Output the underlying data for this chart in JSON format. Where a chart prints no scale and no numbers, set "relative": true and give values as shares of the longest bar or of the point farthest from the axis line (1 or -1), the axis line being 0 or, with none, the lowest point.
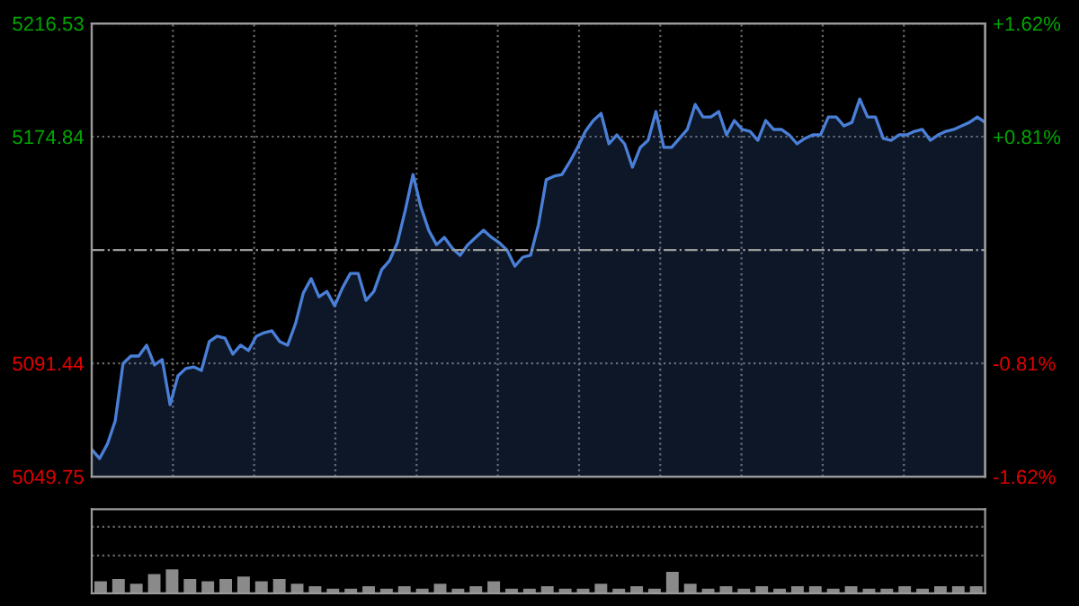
{
  "chart_data": [
    {
      "type": "area",
      "categories": [
        null,
        null,
        null,
        null,
        null,
        null,
        null,
        null,
        null,
        null,
        null,
        null,
        null,
        null,
        null,
        null,
        null,
        null,
        null,
        null,
        null,
        null,
        null,
        null,
        null,
        null,
        null,
        null,
        null,
        null,
        null,
        null,
        null,
        null,
        null,
        null,
        null,
        null,
        null,
        null,
        null,
        null,
        null,
        null,
        null,
        null,
        null,
        null,
        null,
        null,
        null,
        null,
        null,
        null,
        null,
        null,
        null,
        null,
        null,
        null,
        null,
        null,
        null,
        null,
        null,
        null,
        null,
        null,
        null,
        null,
        null,
        null,
        null,
        null,
        null,
        null,
        null,
        null,
        null,
        null,
        null,
        null,
        null,
        null,
        null,
        null,
        null,
        null,
        null,
        null,
        null,
        null,
        null,
        null,
        null,
        null,
        null,
        null,
        null,
        null,
        null,
        null,
        null,
        null,
        null,
        null,
        null,
        null,
        null,
        null,
        null,
        null,
        null,
        null,
        null
      ],
      "series": [
        {
          "color": "#4a7fd8",
          "values": [
            5059.7,
            5056.4,
            5061.7,
            5070.3,
            5091.4,
            5094.1,
            5094.1,
            5098.1,
            5090.8,
            5092.8,
            5076.2,
            5086.8,
            5089.5,
            5090.1,
            5088.8,
            5099.4,
            5101.4,
            5100.7,
            5094.8,
            5098.1,
            5096.1,
            5101.4,
            5102.7,
            5103.4,
            5099.4,
            5098.1,
            5106.0,
            5117.3,
            5122.6,
            5115.9,
            5117.9,
            5112.6,
            5119.2,
            5124.5,
            5124.5,
            5114.6,
            5117.9,
            5125.9,
            5129.2,
            5135.8,
            5147.7,
            5160.9,
            5149.0,
            5140.4,
            5135.1,
            5137.8,
            5133.8,
            5131.2,
            5135.1,
            5137.8,
            5140.4,
            5137.8,
            5135.8,
            5133.1,
            5127.2,
            5130.5,
            5131.2,
            5142.4,
            5159.0,
            5160.3,
            5160.9,
            5165.6,
            5170.9,
            5176.8,
            5180.8,
            5183.4,
            5172.2,
            5175.5,
            5172.2,
            5163.6,
            5170.9,
            5173.5,
            5184.1,
            5170.9,
            5170.9,
            5174.2,
            5177.5,
            5186.7,
            5182.1,
            5182.1,
            5184.1,
            5175.5,
            5180.8,
            5177.5,
            5176.8,
            5173.5,
            5180.8,
            5177.5,
            5177.5,
            5175.5,
            5172.2,
            5174.2,
            5175.5,
            5175.5,
            5182.1,
            5182.1,
            5178.8,
            5180.1,
            5188.7,
            5182.1,
            5182.1,
            5174.2,
            5173.5,
            5175.5,
            5175.5,
            5176.8,
            5177.5,
            5173.5,
            5175.5,
            5176.8,
            5177.5,
            5178.8,
            5180.1,
            5182.1,
            5180.1
          ]
        }
      ],
      "ylim": [
        5049.75,
        5216.53
      ],
      "yticks": [
        5049.75,
        5091.44,
        5174.84,
        5216.53
      ],
      "y2lim": [
        -1.62,
        1.62
      ],
      "y2ticks": [
        {
          "value": -1.62,
          "label": "-1.62%"
        },
        {
          "value": -0.81,
          "label": "-0.81%"
        },
        {
          "value": 0.81,
          "label": "+0.81%"
        },
        {
          "value": 1.62,
          "label": "+1.62%"
        }
      ],
      "ref_lines": [
        {
          "axis": "y",
          "value": 5133.14,
          "color": "#9a9a9a",
          "line_style": "dashdot"
        }
      ],
      "grid": true,
      "legend": false
    },
    {
      "type": "bar",
      "relative": true,
      "grid": true,
      "legend": false,
      "categories": [
        null,
        null,
        null,
        null,
        null,
        null,
        null,
        null,
        null,
        null,
        null,
        null,
        null,
        null,
        null,
        null,
        null,
        null,
        null,
        null,
        null,
        null,
        null,
        null,
        null,
        null,
        null,
        null,
        null,
        null,
        null,
        null,
        null,
        null,
        null,
        null,
        null,
        null,
        null,
        null,
        null,
        null,
        null,
        null,
        null,
        null,
        null,
        null,
        null,
        null
      ],
      "series": [
        {
          "color": "#8a8a8a",
          "values": [
            0.5,
            0.6,
            0.4,
            0.8,
            1.0,
            0.6,
            0.5,
            0.6,
            0.7,
            0.5,
            0.6,
            0.4,
            0.3,
            0.2,
            0.2,
            0.3,
            0.2,
            0.3,
            0.2,
            0.4,
            0.2,
            0.3,
            0.5,
            0.2,
            0.2,
            0.3,
            0.2,
            0.2,
            0.4,
            0.2,
            0.3,
            0.2,
            0.9,
            0.4,
            0.2,
            0.3,
            0.2,
            0.3,
            0.2,
            0.3,
            0.3,
            0.2,
            0.3,
            0.2,
            0.2,
            0.3,
            0.2,
            0.3,
            0.3,
            0.3
          ]
        }
      ]
    }
  ]
}
